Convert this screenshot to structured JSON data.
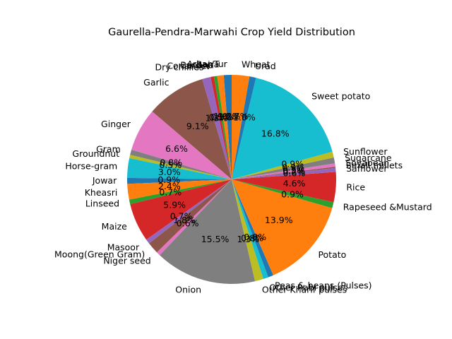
{
  "chart_data": {
    "type": "pie",
    "title": "Gaurella-Pendra-Marwahi Crop Yield Distribution",
    "start_angle_deg": 90,
    "direction": "counterclockwise",
    "percent_format": "%1.1f%%",
    "labels": [
      "Arhar/Tur",
      "Bajra",
      "Banana",
      "Coriander",
      "Dry chillies",
      "Garlic",
      "Ginger",
      "Gram",
      "Groundnut",
      "Horse-gram",
      "Jowar",
      "Kheasri",
      "Linseed",
      "Maize",
      "Masoor",
      "Moong(Green Gram)",
      "Niger seed",
      "Onion",
      "Other Kharif pulses",
      "Other Rabi pulses",
      "Peas & beans (Pulses)",
      "Potato",
      "Rapeseed &Mustard",
      "Rice",
      "Safflower",
      "Small millets",
      "Soyabean",
      "Sugarcane",
      "Sunflower",
      "Sweet potato",
      "Urad",
      "Wheat"
    ],
    "values": [
      1.2,
      1.0,
      0.5,
      0.5,
      1.3,
      9.1,
      6.6,
      0.8,
      0.5,
      3.0,
      0.9,
      2.4,
      0.7,
      5.9,
      0.7,
      1.8,
      0.6,
      15.5,
      1.3,
      0.8,
      0.8,
      13.9,
      0.9,
      4.6,
      0.6,
      0.2,
      0.5,
      0.9,
      0.9,
      16.8,
      1.0,
      2.7
    ],
    "percent_labels": [
      "1.2%",
      "1.0%",
      "0.5%",
      "0.5%",
      "1.3%",
      "9.1%",
      "6.6%",
      "0.8%",
      "0.5%",
      "3.0%",
      "0.9%",
      "2.4%",
      "0.7%",
      "5.9%",
      "0.7%",
      "1.8%",
      "0.6%",
      "15.5%",
      "1.3%",
      "0.8%",
      "0.8%",
      "13.9%",
      "0.9%",
      "4.6%",
      "0.6%",
      "0.2%",
      "0.5%",
      "0.9%",
      "0.9%",
      "16.8%",
      "1.0%",
      "2.7%"
    ],
    "colors": [
      "#1f77b4",
      "#ff7f0e",
      "#2ca02c",
      "#d62728",
      "#9467bd",
      "#8c564b",
      "#e377c2",
      "#7f7f7f",
      "#bcbd22",
      "#17becf"
    ]
  }
}
